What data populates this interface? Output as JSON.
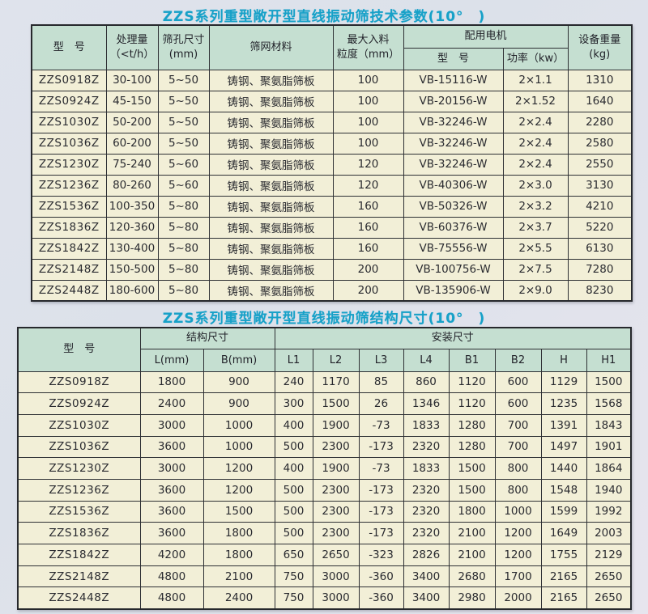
{
  "titles": {
    "table1": "ZZS系列重型敞开型直线振动筛技术参数(10°　)",
    "table2": "ZZS系列重型敞开型直线振动筛结构尺寸(10°　)"
  },
  "table1": {
    "headers": {
      "model": "型　号",
      "capacity_line1": "处理量",
      "capacity_line2": "（<t/h）",
      "aperture_line1": "筛孔尺寸",
      "aperture_line2": "(mm)",
      "material": "筛网材料",
      "feed_line1": "最大入料",
      "feed_line2": "粒度（mm）",
      "motor_group": "配用电机",
      "motor_model": "型　号",
      "motor_power": "功率（kw）",
      "weight_line1": "设备重量",
      "weight_line2": "(kg)"
    },
    "rows": [
      [
        "ZZS0918Z",
        "30-100",
        "5~50",
        "铸钢、聚氨脂筛板",
        "100",
        "VB-15116-W",
        "2×1.1",
        "1310"
      ],
      [
        "ZZS0924Z",
        "45-150",
        "5~50",
        "铸钢、聚氨脂筛板",
        "100",
        "VB-20156-W",
        "2×1.52",
        "1640"
      ],
      [
        "ZZS1030Z",
        "50-200",
        "5~50",
        "铸钢、聚氨脂筛板",
        "100",
        "VB-32246-W",
        "2×2.4",
        "2280"
      ],
      [
        "ZZS1036Z",
        "60-200",
        "5~50",
        "铸钢、聚氨脂筛板",
        "100",
        "VB-32246-W",
        "2×2.4",
        "2580"
      ],
      [
        "ZZS1230Z",
        "75-240",
        "5~60",
        "铸钢、聚氨脂筛板",
        "120",
        "VB-32246-W",
        "2×2.4",
        "2550"
      ],
      [
        "ZZS1236Z",
        "80-260",
        "5~60",
        "铸钢、聚氨脂筛板",
        "120",
        "VB-40306-W",
        "2×3.0",
        "3130"
      ],
      [
        "ZZS1536Z",
        "100-350",
        "5~80",
        "铸钢、聚氨脂筛板",
        "160",
        "VB-50326-W",
        "2×3.2",
        "4210"
      ],
      [
        "ZZS1836Z",
        "120-360",
        "5~80",
        "铸钢、聚氨脂筛板",
        "160",
        "VB-60376-W",
        "2×3.7",
        "5220"
      ],
      [
        "ZZS1842Z",
        "130-400",
        "5~80",
        "铸钢、聚氨脂筛板",
        "160",
        "VB-75556-W",
        "2×5.5",
        "6130"
      ],
      [
        "ZZS2148Z",
        "150-500",
        "5~80",
        "铸钢、聚氨脂筛板",
        "200",
        "VB-100756-W",
        "2×7.5",
        "7280"
      ],
      [
        "ZZS2448Z",
        "180-600",
        "5~80",
        "铸钢、聚氨脂筛板",
        "200",
        "VB-135906-W",
        "2×9.0",
        "8230"
      ]
    ]
  },
  "table2": {
    "headers": {
      "model": "型　号",
      "structure_group": "结构尺寸",
      "install_group": "安装尺寸",
      "cols": {
        "l": "L(mm)",
        "b": "B(mm)",
        "l1": "L1",
        "l2": "L2",
        "l3": "L3",
        "l4": "L4",
        "b1": "B1",
        "b2": "B2",
        "h": "H",
        "h1": "H1"
      }
    },
    "rows": [
      [
        "ZZS0918Z",
        "1800",
        "900",
        "240",
        "1170",
        "85",
        "860",
        "1120",
        "600",
        "1129",
        "1500"
      ],
      [
        "ZZS0924Z",
        "2400",
        "900",
        "300",
        "1500",
        "26",
        "1346",
        "1120",
        "600",
        "1235",
        "1568"
      ],
      [
        "ZZS1030Z",
        "3000",
        "1000",
        "400",
        "1900",
        "-73",
        "1833",
        "1280",
        "700",
        "1391",
        "1843"
      ],
      [
        "ZZS1036Z",
        "3600",
        "1000",
        "500",
        "2300",
        "-173",
        "2320",
        "1280",
        "700",
        "1497",
        "1901"
      ],
      [
        "ZZS1230Z",
        "3000",
        "1200",
        "400",
        "1900",
        "-73",
        "1833",
        "1500",
        "800",
        "1440",
        "1864"
      ],
      [
        "ZZS1236Z",
        "3600",
        "1200",
        "500",
        "2300",
        "-173",
        "2320",
        "1500",
        "800",
        "1548",
        "1940"
      ],
      [
        "ZZS1536Z",
        "3600",
        "1500",
        "500",
        "2300",
        "-173",
        "2320",
        "1800",
        "1000",
        "1599",
        "1992"
      ],
      [
        "ZZS1836Z",
        "3600",
        "1800",
        "500",
        "2300",
        "-173",
        "2320",
        "2100",
        "1200",
        "1649",
        "2003"
      ],
      [
        "ZZS1842Z",
        "4200",
        "1800",
        "650",
        "2650",
        "-323",
        "2826",
        "2100",
        "1200",
        "1755",
        "2129"
      ],
      [
        "ZZS2148Z",
        "4800",
        "2100",
        "750",
        "3000",
        "-360",
        "3400",
        "2680",
        "1700",
        "2165",
        "2650"
      ],
      [
        "ZZS2448Z",
        "4800",
        "2400",
        "750",
        "3000",
        "-360",
        "3400",
        "2980",
        "2000",
        "2165",
        "2650"
      ]
    ]
  }
}
